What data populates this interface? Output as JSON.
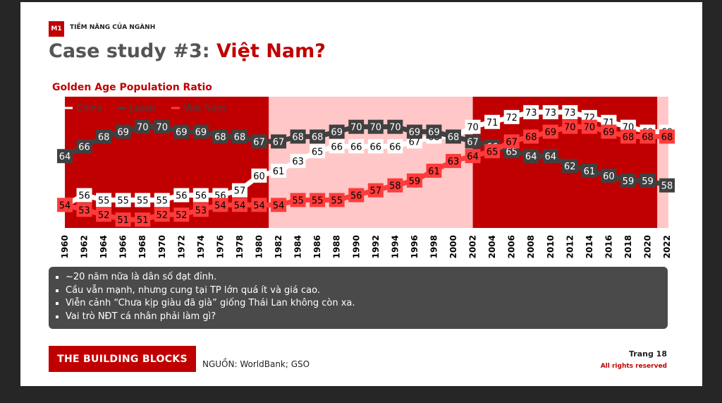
{
  "header": {
    "badge": "M1",
    "section": "TIỀM NĂNG CỦA NGÀNH"
  },
  "title": {
    "main": "Case study #3: ",
    "accent": "Việt Nam?"
  },
  "colors": {
    "brand_red": "#c00000",
    "band_dark": "#c00000",
    "band_light": "#ffc7c7",
    "china": "#ffffff",
    "japan": "#404040",
    "vietnam": "#ff3b3b"
  },
  "chart_data": {
    "type": "line",
    "title": "Golden Age Population Ratio",
    "xlabel": "",
    "ylabel": "",
    "ylim": [
      45,
      78
    ],
    "grid": false,
    "legend_position": "top-left",
    "x": [
      1960,
      1962,
      1964,
      1966,
      1968,
      1970,
      1972,
      1974,
      1976,
      1978,
      1980,
      1982,
      1984,
      1986,
      1988,
      1990,
      1992,
      1994,
      1996,
      1998,
      2000,
      2002,
      2004,
      2006,
      2008,
      2010,
      2012,
      2014,
      2016,
      2018,
      2020,
      2022
    ],
    "x_tick_labels": [
      "1960",
      "1962",
      "1964",
      "1966",
      "1968",
      "1970",
      "1972",
      "1974",
      "1976",
      "1978",
      "1980",
      "1982",
      "1984",
      "1986",
      "1988",
      "1990",
      "1992",
      "1994",
      "1996",
      "1998",
      "2000",
      "2002",
      "2004",
      "2006",
      "2008",
      "2010",
      "2012",
      "2014",
      "2016",
      "2018",
      "2020",
      "2022"
    ],
    "background_bands": [
      {
        "from": 1960,
        "to": 1981,
        "style": "dark"
      },
      {
        "from": 1981,
        "to": 2002,
        "style": "light"
      },
      {
        "from": 2002,
        "to": 2021,
        "style": "dark"
      },
      {
        "from": 2021,
        "to": 2023,
        "style": "light"
      }
    ],
    "series": [
      {
        "name": "China",
        "color": "#ffffff",
        "text_color": "#000000",
        "values": [
          54,
          56,
          55,
          55,
          55,
          55,
          56,
          56,
          56,
          57,
          60,
          61,
          63,
          65,
          66,
          66,
          66,
          66,
          67,
          68,
          68,
          70,
          71,
          72,
          73,
          73,
          73,
          72,
          71,
          70,
          69,
          69
        ]
      },
      {
        "name": "Japan",
        "color": "#404040",
        "text_color": "#ffffff",
        "values": [
          64,
          66,
          68,
          69,
          70,
          70,
          69,
          69,
          68,
          68,
          67,
          67,
          68,
          68,
          69,
          70,
          70,
          70,
          69,
          69,
          68,
          67,
          66,
          65,
          64,
          64,
          62,
          61,
          60,
          59,
          59,
          58
        ]
      },
      {
        "name": "Viet Nam",
        "color": "#ff3b3b",
        "text_color": "#000000",
        "values": [
          54,
          53,
          52,
          51,
          51,
          52,
          52,
          53,
          54,
          54,
          54,
          54,
          55,
          55,
          55,
          56,
          57,
          58,
          59,
          61,
          63,
          64,
          65,
          67,
          68,
          69,
          70,
          70,
          69,
          68,
          68,
          68
        ]
      }
    ]
  },
  "bullets": [
    "~20 năm nữa là dân số đạt đỉnh.",
    "Cầu vẫn mạnh, nhưng cung tại TP lớn quá ít và giá cao.",
    "Viễn cảnh “Chưa kịp giàu đã già” giống Thái Lan không còn xa.",
    "Vai trò NĐT cá nhân phải làm gì?"
  ],
  "footer": {
    "brand": "THE BUILDING BLOCKS",
    "source": "NGUỒN: WorldBank; GSO",
    "page": "Trang 18",
    "rights": "All rights reserved"
  }
}
